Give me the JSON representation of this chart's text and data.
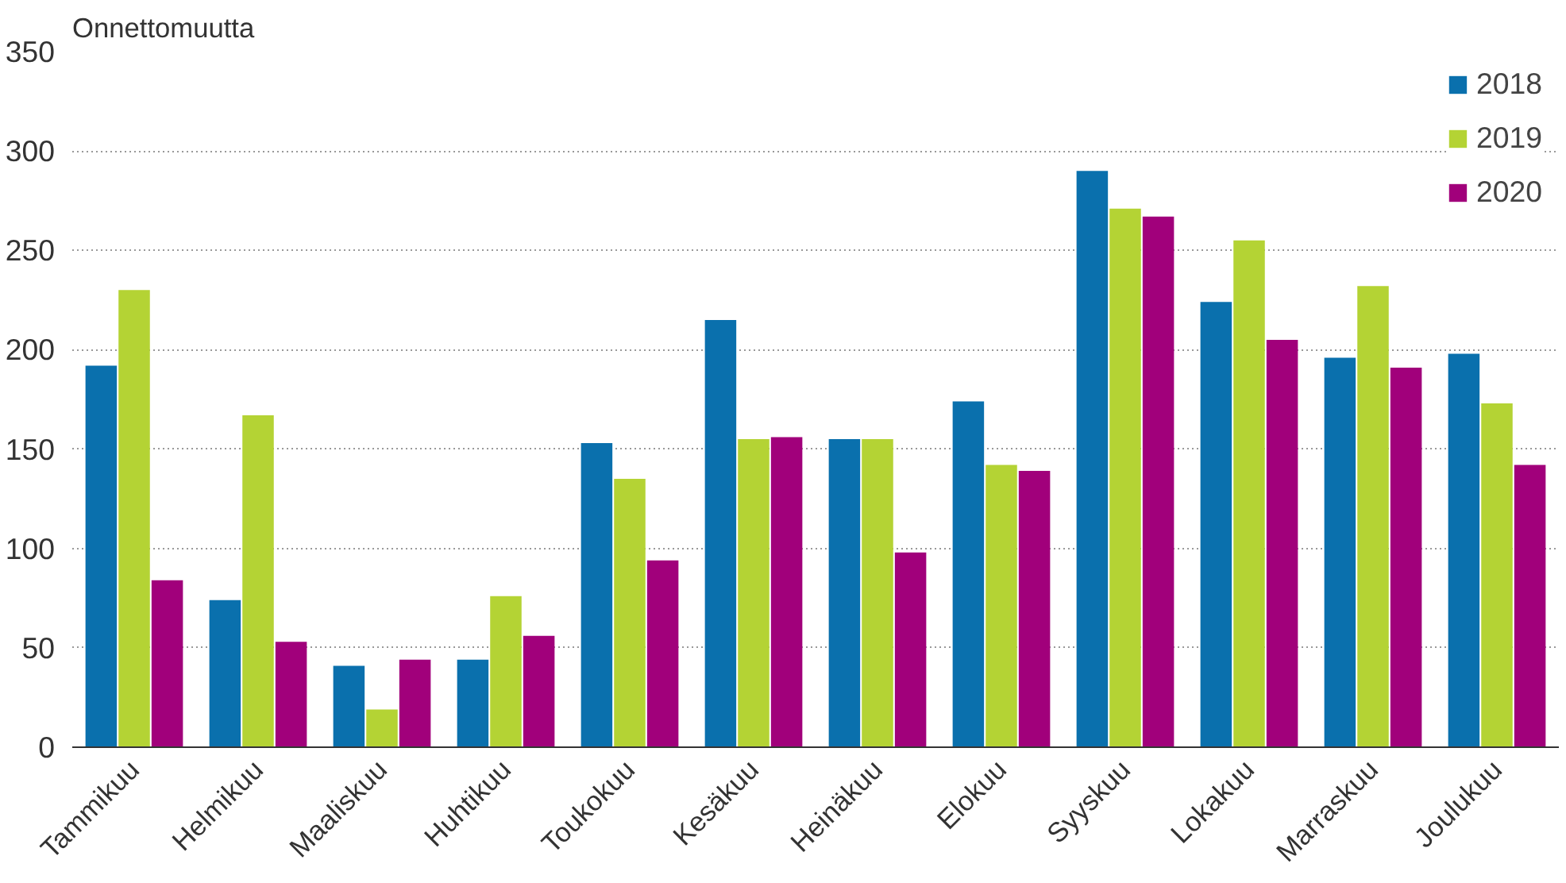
{
  "chart_data": {
    "type": "bar",
    "ylabel": "Onnettomuutta",
    "categories": [
      "Tammikuu",
      "Helmikuu",
      "Maaliskuu",
      "Huhtikuu",
      "Toukokuu",
      "Kesäkuu",
      "Heinäkuu",
      "Elokuu",
      "Syyskuu",
      "Lokakuu",
      "Marraskuu",
      "Joulukuu"
    ],
    "series": [
      {
        "name": "2018",
        "color": "#0a70ad",
        "values": [
          192,
          74,
          41,
          44,
          153,
          215,
          155,
          174,
          290,
          224,
          196,
          198
        ]
      },
      {
        "name": "2019",
        "color": "#b4d334",
        "values": [
          230,
          167,
          19,
          76,
          135,
          155,
          155,
          142,
          271,
          255,
          232,
          173
        ]
      },
      {
        "name": "2020",
        "color": "#a1007b",
        "values": [
          84,
          53,
          44,
          56,
          94,
          156,
          98,
          139,
          267,
          205,
          191,
          142
        ]
      }
    ],
    "ylim": [
      0,
      350
    ],
    "yticks": [
      0,
      50,
      100,
      150,
      200,
      250,
      300,
      350
    ],
    "grid": "y",
    "legend": "top right"
  }
}
